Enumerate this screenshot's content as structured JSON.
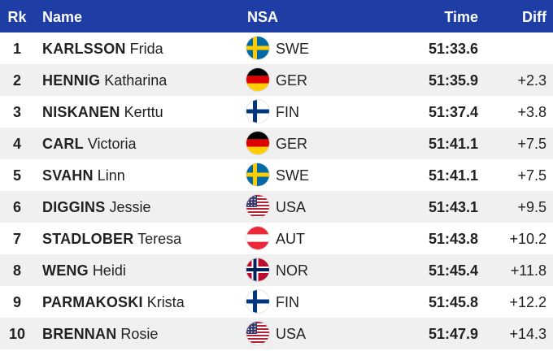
{
  "header": {
    "rank": "Rk",
    "name": "Name",
    "nsa": "NSA",
    "time": "Time",
    "diff": "Diff"
  },
  "rows": [
    {
      "rank": "1",
      "surname": "KARLSSON",
      "first": "Frida",
      "nsa": "SWE",
      "flag": "sweden-flag-icon",
      "time": "51:33.6",
      "diff": ""
    },
    {
      "rank": "2",
      "surname": "HENNIG",
      "first": "Katharina",
      "nsa": "GER",
      "flag": "germany-flag-icon",
      "time": "51:35.9",
      "diff": "+2.3"
    },
    {
      "rank": "3",
      "surname": "NISKANEN",
      "first": "Kerttu",
      "nsa": "FIN",
      "flag": "finland-flag-icon",
      "time": "51:37.4",
      "diff": "+3.8"
    },
    {
      "rank": "4",
      "surname": "CARL",
      "first": "Victoria",
      "nsa": "GER",
      "flag": "germany-flag-icon",
      "time": "51:41.1",
      "diff": "+7.5"
    },
    {
      "rank": "5",
      "surname": "SVAHN",
      "first": "Linn",
      "nsa": "SWE",
      "flag": "sweden-flag-icon",
      "time": "51:41.1",
      "diff": "+7.5"
    },
    {
      "rank": "6",
      "surname": "DIGGINS",
      "first": "Jessie",
      "nsa": "USA",
      "flag": "usa-flag-icon",
      "time": "51:43.1",
      "diff": "+9.5"
    },
    {
      "rank": "7",
      "surname": "STADLOBER",
      "first": "Teresa",
      "nsa": "AUT",
      "flag": "austria-flag-icon",
      "time": "51:43.8",
      "diff": "+10.2"
    },
    {
      "rank": "8",
      "surname": "WENG",
      "first": "Heidi",
      "nsa": "NOR",
      "flag": "norway-flag-icon",
      "time": "51:45.4",
      "diff": "+11.8"
    },
    {
      "rank": "9",
      "surname": "PARMAKOSKI",
      "first": "Krista",
      "nsa": "FIN",
      "flag": "finland-flag-icon",
      "time": "51:45.8",
      "diff": "+12.2"
    },
    {
      "rank": "10",
      "surname": "BRENNAN",
      "first": "Rosie",
      "nsa": "USA",
      "flag": "usa-flag-icon",
      "time": "51:47.9",
      "diff": "+14.3"
    }
  ],
  "colors": {
    "header_bg": "#1e3da5",
    "row_alt": "#f0f0f0"
  }
}
